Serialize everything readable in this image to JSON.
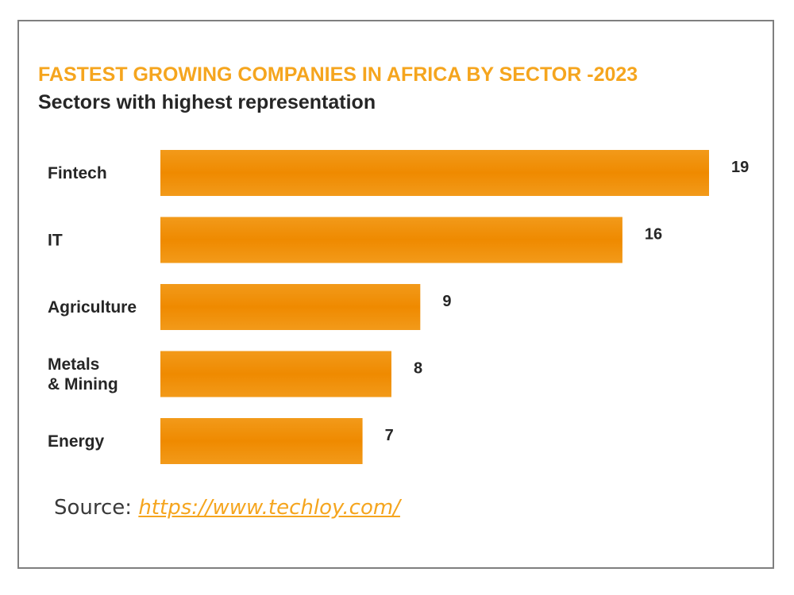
{
  "chart_data": {
    "type": "bar",
    "orientation": "horizontal",
    "title": "FASTEST GROWING COMPANIES IN AFRICA BY SECTOR -2023",
    "subtitle": "Sectors with highest representation",
    "categories": [
      [
        "Fintech"
      ],
      [
        "IT"
      ],
      [
        "Agriculture"
      ],
      [
        "Metals",
        "& Mining"
      ],
      [
        "Energy"
      ]
    ],
    "values": [
      19,
      16,
      9,
      8,
      7
    ],
    "xlim": [
      0,
      19
    ],
    "grid": false,
    "legend": "none",
    "bar_color": "#f08a00",
    "title_color": "#f5a51e"
  },
  "source": {
    "label": "Source: ",
    "link_text": "https://www.techloy.com/"
  }
}
